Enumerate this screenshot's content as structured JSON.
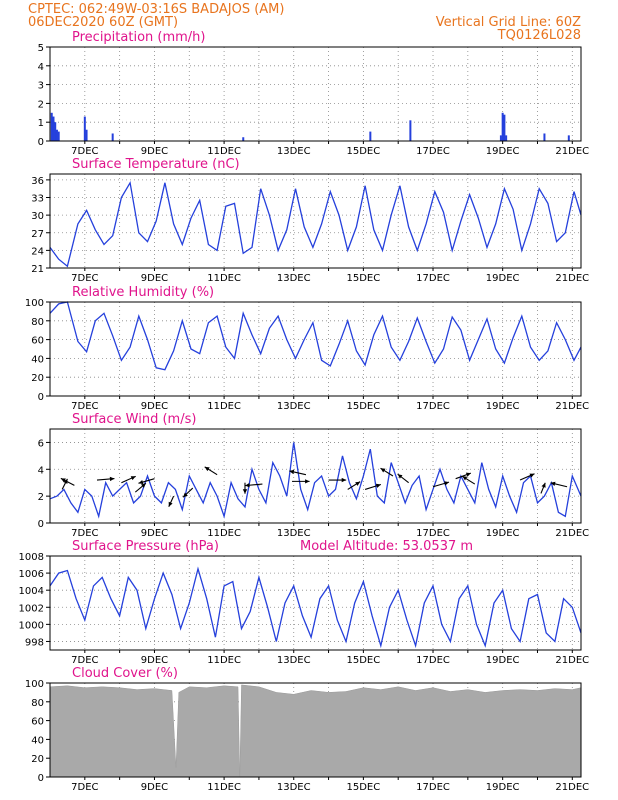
{
  "header": {
    "line1": "CPTEC:   062:49W-03:16S   BADAJOS (AM)",
    "line2": "06DEC2020 60Z (GMT)",
    "grid_note": "Vertical Grid Line: 60Z",
    "code": "TQ0126L028"
  },
  "colors": {
    "header": "#e8741e",
    "title": "#e0148c",
    "line": "#2540dc",
    "cloud": "#a9a9a9",
    "frame": "#000000"
  },
  "chart_data": [
    {
      "type": "bar",
      "title": "Precipitation (mm/h)",
      "ylim": [
        0,
        5
      ],
      "yticks": [
        0,
        1,
        2,
        3,
        4,
        5
      ],
      "xlim": [
        0,
        15.25
      ],
      "xticks": [
        "7DEC",
        "9DEC",
        "11DEC",
        "13DEC",
        "15DEC",
        "17DEC",
        "19DEC",
        "21DEC"
      ],
      "x": [
        0.05,
        0.1,
        0.15,
        0.2,
        0.25,
        1.0,
        1.05,
        1.8,
        5.55,
        9.2,
        10.35,
        12.95,
        13.0,
        13.05,
        13.1,
        14.2,
        14.9
      ],
      "values": [
        1.5,
        1.3,
        1.0,
        0.6,
        0.5,
        1.3,
        0.6,
        0.4,
        0.2,
        0.5,
        1.1,
        0.3,
        1.5,
        1.4,
        0.3,
        0.4,
        0.3
      ]
    },
    {
      "type": "line",
      "title": "Surface Temperature (nC)",
      "ylim": [
        21,
        37
      ],
      "yticks": [
        21,
        24,
        27,
        30,
        33,
        36
      ],
      "xlim": [
        0,
        15.25
      ],
      "xticks": [
        "7DEC",
        "9DEC",
        "11DEC",
        "13DEC",
        "15DEC",
        "17DEC",
        "19DEC",
        "21DEC"
      ],
      "x": [
        0,
        0.25,
        0.5,
        0.8,
        1.05,
        1.3,
        1.55,
        1.8,
        2.05,
        2.3,
        2.55,
        2.8,
        3.05,
        3.3,
        3.55,
        3.8,
        4.05,
        4.3,
        4.55,
        4.8,
        5.05,
        5.3,
        5.55,
        5.8,
        6.05,
        6.3,
        6.55,
        6.8,
        7.05,
        7.3,
        7.55,
        7.8,
        8.05,
        8.3,
        8.55,
        8.8,
        9.05,
        9.3,
        9.55,
        9.8,
        10.05,
        10.3,
        10.55,
        10.8,
        11.05,
        11.3,
        11.55,
        11.8,
        12.05,
        12.3,
        12.55,
        12.8,
        13.05,
        13.3,
        13.55,
        13.8,
        14.05,
        14.3,
        14.55,
        14.8,
        15.05,
        15.25
      ],
      "values": [
        24.5,
        22.5,
        21.3,
        28.5,
        30.8,
        27.5,
        25.0,
        26.5,
        33.0,
        35.5,
        27.0,
        25.5,
        29.0,
        35.5,
        28.5,
        25.0,
        29.5,
        32.5,
        25.0,
        24.0,
        31.5,
        32.0,
        23.5,
        24.5,
        34.5,
        30.0,
        24.0,
        27.5,
        34.5,
        28.0,
        24.5,
        28.5,
        34.0,
        30.0,
        24.0,
        28.0,
        35.0,
        27.5,
        24.0,
        30.0,
        35.0,
        28.0,
        24.0,
        28.5,
        34.0,
        30.5,
        24.0,
        29.0,
        33.5,
        29.5,
        24.5,
        28.5,
        34.5,
        31.0,
        24.0,
        28.5,
        34.5,
        32.0,
        25.5,
        27.0,
        34.0,
        30.0
      ]
    },
    {
      "type": "line",
      "title": "Relative Humidity (%)",
      "ylim": [
        0,
        100
      ],
      "yticks": [
        0,
        20,
        40,
        60,
        80,
        100
      ],
      "xlim": [
        0,
        15.25
      ],
      "xticks": [
        "7DEC",
        "9DEC",
        "11DEC",
        "13DEC",
        "15DEC",
        "17DEC",
        "19DEC",
        "21DEC"
      ],
      "x": [
        0,
        0.25,
        0.5,
        0.8,
        1.05,
        1.3,
        1.55,
        1.8,
        2.05,
        2.3,
        2.55,
        2.8,
        3.05,
        3.3,
        3.55,
        3.8,
        4.05,
        4.3,
        4.55,
        4.8,
        5.05,
        5.3,
        5.55,
        5.8,
        6.05,
        6.3,
        6.55,
        6.8,
        7.05,
        7.3,
        7.55,
        7.8,
        8.05,
        8.3,
        8.55,
        8.8,
        9.05,
        9.3,
        9.55,
        9.8,
        10.05,
        10.3,
        10.55,
        10.8,
        11.05,
        11.3,
        11.55,
        11.8,
        12.05,
        12.3,
        12.55,
        12.8,
        13.05,
        13.3,
        13.55,
        13.8,
        14.05,
        14.3,
        14.55,
        14.8,
        15.05,
        15.25
      ],
      "values": [
        88,
        98,
        100,
        58,
        47,
        80,
        88,
        64,
        38,
        52,
        85,
        60,
        30,
        28,
        48,
        80,
        50,
        45,
        78,
        85,
        52,
        40,
        88,
        65,
        45,
        72,
        85,
        60,
        40,
        60,
        78,
        38,
        32,
        55,
        80,
        48,
        33,
        65,
        85,
        52,
        38,
        58,
        83,
        58,
        35,
        50,
        84,
        70,
        38,
        60,
        82,
        50,
        35,
        62,
        85,
        52,
        38,
        48,
        78,
        60,
        38,
        52
      ]
    },
    {
      "type": "line",
      "title": "Surface Wind (m/s)",
      "ylim": [
        0,
        7
      ],
      "yticks": [
        0,
        2,
        4,
        6
      ],
      "xlim": [
        0,
        15.25
      ],
      "xticks": [
        "7DEC",
        "9DEC",
        "11DEC",
        "13DEC",
        "15DEC",
        "17DEC",
        "19DEC",
        "21DEC"
      ],
      "x": [
        0,
        0.2,
        0.4,
        0.6,
        0.8,
        1.0,
        1.2,
        1.4,
        1.6,
        1.8,
        2.0,
        2.2,
        2.4,
        2.6,
        2.8,
        3.0,
        3.2,
        3.4,
        3.6,
        3.8,
        4.0,
        4.2,
        4.4,
        4.6,
        4.8,
        5.0,
        5.2,
        5.4,
        5.6,
        5.8,
        6.0,
        6.2,
        6.4,
        6.6,
        6.8,
        7.0,
        7.2,
        7.4,
        7.6,
        7.8,
        8.0,
        8.2,
        8.4,
        8.6,
        8.8,
        9.0,
        9.2,
        9.4,
        9.6,
        9.8,
        10.0,
        10.2,
        10.4,
        10.6,
        10.8,
        11.0,
        11.2,
        11.4,
        11.6,
        11.8,
        12.0,
        12.2,
        12.4,
        12.6,
        12.8,
        13.0,
        13.2,
        13.4,
        13.6,
        13.8,
        14.0,
        14.2,
        14.4,
        14.6,
        14.8,
        15.0,
        15.25
      ],
      "values": [
        1.8,
        2.0,
        2.5,
        1.5,
        0.8,
        2.5,
        2.0,
        0.5,
        3.0,
        2.0,
        2.5,
        3.0,
        1.5,
        2.0,
        3.5,
        2.0,
        1.5,
        3.0,
        2.5,
        1.0,
        3.5,
        2.5,
        1.5,
        3.0,
        2.0,
        0.5,
        3.0,
        1.8,
        1.2,
        4.0,
        2.5,
        1.5,
        4.5,
        3.5,
        2.0,
        6.0,
        2.5,
        1.0,
        3.0,
        3.5,
        2.0,
        2.5,
        5.0,
        3.0,
        1.8,
        3.5,
        5.5,
        2.0,
        1.5,
        4.5,
        3.0,
        1.5,
        2.8,
        3.5,
        1.0,
        2.5,
        4.0,
        2.5,
        1.5,
        3.5,
        2.5,
        1.5,
        4.5,
        2.5,
        1.2,
        3.5,
        2.0,
        0.8,
        3.0,
        3.5,
        1.5,
        2.0,
        3.0,
        0.8,
        0.5,
        3.5,
        2.0
      ],
      "arrows": [
        {
          "x": 0.35,
          "y": 2.5,
          "u": 1,
          "v": 3.2
        },
        {
          "x": 0.7,
          "y": 2.8,
          "u": -1.2,
          "v": 1.0
        },
        {
          "x": 1.35,
          "y": 3.2,
          "u": 1.5,
          "v": 0.2
        },
        {
          "x": 2.05,
          "y": 3.0,
          "u": 1.4,
          "v": 1.0
        },
        {
          "x": 2.45,
          "y": 2.3,
          "u": 1.2,
          "v": 1.6
        },
        {
          "x": 3.0,
          "y": 3.3,
          "u": -1.3,
          "v": -0.6
        },
        {
          "x": 3.55,
          "y": 2.0,
          "u": -0.4,
          "v": -1.4
        },
        {
          "x": 4.1,
          "y": 2.6,
          "u": -0.8,
          "v": -1.2
        },
        {
          "x": 4.8,
          "y": 3.6,
          "u": -1.0,
          "v": 1.0
        },
        {
          "x": 5.6,
          "y": 3.0,
          "u": 0.0,
          "v": -1.5
        },
        {
          "x": 6.1,
          "y": 2.9,
          "u": -1.4,
          "v": -0.2
        },
        {
          "x": 6.95,
          "y": 3.1,
          "u": 1.3,
          "v": 0.0
        },
        {
          "x": 7.35,
          "y": 3.6,
          "u": -1.4,
          "v": 0.5
        },
        {
          "x": 8.0,
          "y": 3.2,
          "u": 1.3,
          "v": 0.0
        },
        {
          "x": 8.55,
          "y": 2.5,
          "u": 1.2,
          "v": 1.2
        },
        {
          "x": 9.05,
          "y": 2.5,
          "u": 1.2,
          "v": 0.6
        },
        {
          "x": 9.85,
          "y": 3.5,
          "u": -1.2,
          "v": 1.2
        },
        {
          "x": 10.3,
          "y": 3.0,
          "u": -0.8,
          "v": 1.0
        },
        {
          "x": 11.0,
          "y": 2.7,
          "u": 1.3,
          "v": 0.6
        },
        {
          "x": 11.65,
          "y": 3.3,
          "u": 1.2,
          "v": 0.7
        },
        {
          "x": 12.2,
          "y": 2.9,
          "u": -1.2,
          "v": 1.2
        },
        {
          "x": 13.5,
          "y": 3.2,
          "u": 1.3,
          "v": 0.9
        },
        {
          "x": 14.1,
          "y": 2.2,
          "u": 0.4,
          "v": 1.6
        },
        {
          "x": 14.85,
          "y": 2.7,
          "u": -1.3,
          "v": 0.5
        }
      ]
    },
    {
      "type": "line",
      "title": "Surface Pressure (hPa)",
      "subtitle": "Model Altitude: 53.0537 m",
      "ylim": [
        997,
        1008
      ],
      "yticks": [
        998,
        1000,
        1002,
        1004,
        1006,
        1008
      ],
      "xlim": [
        0,
        15.25
      ],
      "xticks": [
        "7DEC",
        "9DEC",
        "11DEC",
        "13DEC",
        "15DEC",
        "17DEC",
        "19DEC",
        "21DEC"
      ],
      "x": [
        0,
        0.25,
        0.5,
        0.75,
        1.0,
        1.25,
        1.5,
        1.75,
        2.0,
        2.25,
        2.5,
        2.75,
        3.0,
        3.25,
        3.5,
        3.75,
        4.0,
        4.25,
        4.5,
        4.75,
        5.0,
        5.25,
        5.5,
        5.75,
        6.0,
        6.25,
        6.5,
        6.75,
        7.0,
        7.25,
        7.5,
        7.75,
        8.0,
        8.25,
        8.5,
        8.75,
        9.0,
        9.25,
        9.5,
        9.75,
        10.0,
        10.25,
        10.5,
        10.75,
        11.0,
        11.25,
        11.5,
        11.75,
        12.0,
        12.25,
        12.5,
        12.75,
        13.0,
        13.25,
        13.5,
        13.75,
        14.0,
        14.25,
        14.5,
        14.75,
        15.0,
        15.25
      ],
      "values": [
        1004.5,
        1006.0,
        1006.3,
        1003.0,
        1000.5,
        1004.5,
        1005.5,
        1003.0,
        1001.0,
        1005.5,
        1004.0,
        999.5,
        1003.0,
        1006.0,
        1003.5,
        999.5,
        1002.5,
        1006.5,
        1003.0,
        998.5,
        1004.5,
        1005.0,
        999.5,
        1001.5,
        1005.5,
        1002.0,
        998.0,
        1002.5,
        1004.5,
        1001.0,
        998.5,
        1003.0,
        1004.5,
        1000.5,
        998.0,
        1002.5,
        1005.0,
        1001.0,
        997.5,
        1002.0,
        1004.0,
        1000.5,
        997.5,
        1002.5,
        1004.5,
        1000.0,
        998.0,
        1003.0,
        1004.5,
        1000.0,
        997.5,
        1002.5,
        1004.0,
        999.5,
        998.0,
        1003.0,
        1003.5,
        999.0,
        998.0,
        1003.0,
        1002.0,
        999.0
      ]
    },
    {
      "type": "area",
      "title": "Cloud Cover (%)",
      "ylim": [
        0,
        100
      ],
      "yticks": [
        0,
        20,
        40,
        60,
        80,
        100
      ],
      "xlim": [
        0,
        15.25
      ],
      "xticks": [
        "7DEC",
        "9DEC",
        "11DEC",
        "13DEC",
        "15DEC",
        "17DEC",
        "19DEC",
        "21DEC"
      ],
      "x": [
        0,
        0.5,
        1.0,
        1.5,
        2.0,
        2.5,
        3.0,
        3.5,
        3.62,
        3.7,
        4.0,
        4.5,
        5.0,
        5.4,
        5.45,
        5.5,
        6.0,
        6.5,
        7.0,
        7.5,
        8.0,
        8.5,
        9.0,
        9.5,
        10.0,
        10.5,
        11.0,
        11.5,
        12.0,
        12.5,
        13.0,
        13.5,
        14.0,
        14.5,
        15.0,
        15.25
      ],
      "values": [
        96,
        97,
        95,
        96,
        95,
        93,
        94,
        92,
        10,
        90,
        96,
        95,
        97,
        96,
        0,
        98,
        96,
        90,
        88,
        92,
        90,
        91,
        95,
        93,
        96,
        92,
        95,
        91,
        93,
        90,
        92,
        93,
        92,
        94,
        93,
        95
      ]
    }
  ]
}
